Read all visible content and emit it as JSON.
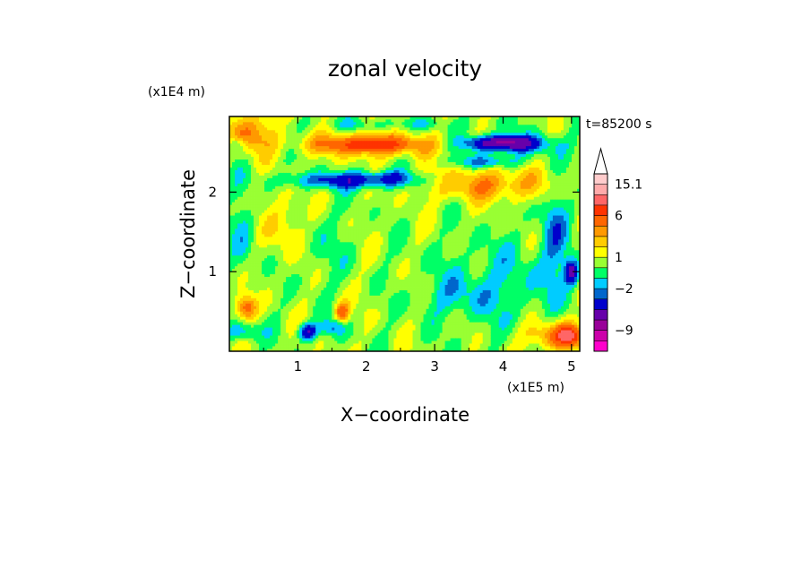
{
  "chart_data": {
    "type": "heatmap",
    "title": "zonal velocity",
    "xlabel": "X−coordinate",
    "ylabel": "Z−coordinate",
    "x_scale_note": "(x1E5 m)",
    "y_scale_note": "(x1E4 m)",
    "time_label": "t=85200 s",
    "xlim": [
      0,
      5.12
    ],
    "ylim": [
      0,
      2.95
    ],
    "x_ticks": [
      1,
      2,
      3,
      4,
      5
    ],
    "x_tick_labels": [
      "1",
      "2",
      "3",
      "4",
      "5"
    ],
    "y_ticks": [
      1,
      2
    ],
    "y_tick_labels": [
      "1",
      "2"
    ],
    "colorbar": {
      "labels": [
        {
          "value": 15.1,
          "text": "15.1"
        },
        {
          "value": 6,
          "text": "6"
        },
        {
          "value": 1,
          "text": "1"
        },
        {
          "value": -2,
          "text": "−2"
        },
        {
          "value": -9,
          "text": "−9"
        }
      ],
      "colors": [
        "#ff00cc",
        "#cc00aa",
        "#990099",
        "#6600aa",
        "#0000cc",
        "#0066cc",
        "#00ccff",
        "#00ff66",
        "#99ff33",
        "#ffff00",
        "#ffcc00",
        "#ff9900",
        "#ff6600",
        "#ff3300",
        "#ff6666",
        "#ffaaaa",
        "#ffcccc"
      ]
    },
    "background_value": 0.5,
    "features": [
      {
        "x": 2.05,
        "z": 2.6,
        "sx": 0.9,
        "sz": 0.14,
        "v": 5
      },
      {
        "x": 2.1,
        "z": 2.6,
        "sx": 0.45,
        "sz": 0.06,
        "v": 2.5
      },
      {
        "x": 1.8,
        "z": 2.15,
        "sx": 0.9,
        "sz": 0.1,
        "v": -4.5
      },
      {
        "x": 2.35,
        "z": 2.2,
        "sx": 0.35,
        "sz": 0.08,
        "v": -1.5
      },
      {
        "x": 3.95,
        "z": 2.62,
        "sx": 0.5,
        "sz": 0.09,
        "v": -7
      },
      {
        "x": 3.75,
        "z": 2.38,
        "sx": 0.45,
        "sz": 0.08,
        "v": -3
      },
      {
        "x": 4.3,
        "z": 2.6,
        "sx": 0.6,
        "sz": 0.14,
        "v": -2
      },
      {
        "x": 3.8,
        "z": 2.1,
        "sx": 0.9,
        "sz": 0.2,
        "v": 3.2
      },
      {
        "x": 0.3,
        "z": 2.75,
        "sx": 0.35,
        "sz": 0.25,
        "v": 3.5
      },
      {
        "x": 0.1,
        "z": 2.6,
        "sx": 0.12,
        "sz": 0.08,
        "v": -2.5
      },
      {
        "x": 2.4,
        "z": 2.85,
        "sx": 1.2,
        "sz": 0.08,
        "v": -1.2
      },
      {
        "x": 4.0,
        "z": 0.85,
        "sx": 0.9,
        "sz": 0.55,
        "v": -1.5
      },
      {
        "x": 3.3,
        "z": 0.7,
        "sx": 0.5,
        "sz": 0.25,
        "v": -1.2
      },
      {
        "x": 4.75,
        "z": 1.5,
        "sx": 0.2,
        "sz": 0.6,
        "v": -2.5
      },
      {
        "x": 5.0,
        "z": 1.0,
        "sx": 0.1,
        "sz": 0.15,
        "v": -6
      },
      {
        "x": 0.2,
        "z": 1.5,
        "sx": 0.18,
        "sz": 0.6,
        "v": -1.5
      },
      {
        "x": 0.25,
        "z": 0.55,
        "sx": 0.15,
        "sz": 0.15,
        "v": 4.5
      },
      {
        "x": 0.2,
        "z": 0.25,
        "sx": 0.25,
        "sz": 0.12,
        "v": -2.5
      },
      {
        "x": 1.15,
        "z": 0.25,
        "sx": 0.12,
        "sz": 0.1,
        "v": -6
      },
      {
        "x": 1.65,
        "z": 0.5,
        "sx": 0.1,
        "sz": 0.12,
        "v": 5
      },
      {
        "x": 1.5,
        "z": 0.3,
        "sx": 0.2,
        "sz": 0.1,
        "v": -2.5
      },
      {
        "x": 4.8,
        "z": 0.2,
        "sx": 0.45,
        "sz": 0.18,
        "v": 4
      },
      {
        "x": 4.95,
        "z": 0.2,
        "sx": 0.15,
        "sz": 0.1,
        "v": 6
      },
      {
        "x": 1.4,
        "z": 1.3,
        "sx": 0.35,
        "sz": 0.5,
        "v": -0.8
      },
      {
        "x": 0.8,
        "z": 1.6,
        "sx": 0.25,
        "sz": 0.4,
        "v": 1.8
      }
    ]
  }
}
